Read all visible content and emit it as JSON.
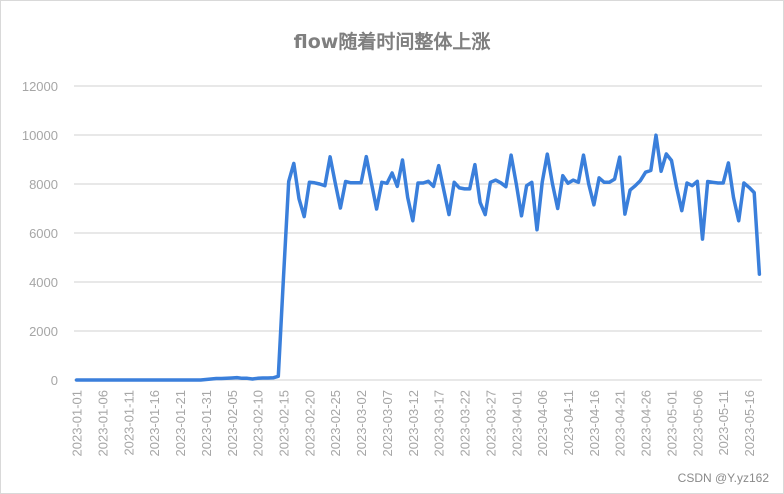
{
  "chart_data": {
    "type": "line",
    "title": "flow随着时间整体上涨",
    "xlabel": "",
    "ylabel": "",
    "ylim": [
      0,
      12000
    ],
    "yticks": [
      0,
      2000,
      4000,
      6000,
      8000,
      10000,
      12000
    ],
    "grid": true,
    "legend": "none",
    "colors": {
      "line": "#3a7fdb",
      "grid": "#d9d9d9",
      "text": "#a6a6a6"
    },
    "x_tick_every": 5,
    "categories": [
      "2023-01-01",
      "2023-01-02",
      "2023-01-03",
      "2023-01-04",
      "2023-01-05",
      "2023-01-06",
      "2023-01-07",
      "2023-01-08",
      "2023-01-09",
      "2023-01-10",
      "2023-01-11",
      "2023-01-12",
      "2023-01-13",
      "2023-01-14",
      "2023-01-15",
      "2023-01-16",
      "2023-01-17",
      "2023-01-18",
      "2023-01-19",
      "2023-01-20",
      "2023-01-21",
      "2023-01-27",
      "2023-01-28",
      "2023-01-29",
      "2023-01-30",
      "2023-01-31",
      "2023-02-01",
      "2023-02-02",
      "2023-02-03",
      "2023-02-04",
      "2023-02-05",
      "2023-02-06",
      "2023-02-07",
      "2023-02-08",
      "2023-02-09",
      "2023-02-10",
      "2023-02-11",
      "2023-02-12",
      "2023-02-13",
      "2023-02-14",
      "2023-02-15",
      "2023-02-16",
      "2023-02-17",
      "2023-02-18",
      "2023-02-19",
      "2023-02-20",
      "2023-02-21",
      "2023-02-22",
      "2023-02-23",
      "2023-02-24",
      "2023-02-25",
      "2023-02-26",
      "2023-02-27",
      "2023-02-28",
      "2023-03-01",
      "2023-03-02",
      "2023-03-03",
      "2023-03-04",
      "2023-03-05",
      "2023-03-06",
      "2023-03-07",
      "2023-03-08",
      "2023-03-09",
      "2023-03-10",
      "2023-03-11",
      "2023-03-12",
      "2023-03-13",
      "2023-03-14",
      "2023-03-15",
      "2023-03-16",
      "2023-03-17",
      "2023-03-18",
      "2023-03-19",
      "2023-03-20",
      "2023-03-21",
      "2023-03-22",
      "2023-03-23",
      "2023-03-24",
      "2023-03-25",
      "2023-03-26",
      "2023-03-27",
      "2023-03-28",
      "2023-03-29",
      "2023-03-30",
      "2023-03-31",
      "2023-04-01",
      "2023-04-02",
      "2023-04-03",
      "2023-04-04",
      "2023-04-05",
      "2023-04-06",
      "2023-04-07",
      "2023-04-08",
      "2023-04-09",
      "2023-04-10",
      "2023-04-11",
      "2023-04-12",
      "2023-04-13",
      "2023-04-14",
      "2023-04-15",
      "2023-04-16",
      "2023-04-17",
      "2023-04-18",
      "2023-04-19",
      "2023-04-20",
      "2023-04-21",
      "2023-04-22",
      "2023-04-23",
      "2023-04-24",
      "2023-04-25",
      "2023-04-26",
      "2023-04-27",
      "2023-04-28",
      "2023-04-29",
      "2023-04-30",
      "2023-05-01",
      "2023-05-02",
      "2023-05-03",
      "2023-05-04",
      "2023-05-05",
      "2023-05-06",
      "2023-05-07",
      "2023-05-08",
      "2023-05-09",
      "2023-05-10",
      "2023-05-11",
      "2023-05-12",
      "2023-05-13",
      "2023-05-14",
      "2023-05-15",
      "2023-05-16",
      "2023-05-17",
      "2023-05-18"
    ],
    "values": [
      0,
      0,
      0,
      0,
      0,
      0,
      0,
      0,
      0,
      0,
      0,
      0,
      0,
      0,
      0,
      0,
      0,
      0,
      0,
      0,
      0,
      0,
      0,
      0,
      0,
      20,
      40,
      60,
      60,
      70,
      80,
      100,
      70,
      70,
      40,
      70,
      80,
      80,
      90,
      150,
      4200,
      8100,
      8840,
      7400,
      6670,
      8070,
      8050,
      8000,
      7930,
      9110,
      8050,
      7020,
      8100,
      8050,
      8050,
      8050,
      9120,
      8050,
      6980,
      8070,
      8030,
      8450,
      7900,
      8980,
      7450,
      6500,
      8040,
      8040,
      8110,
      7900,
      8750,
      7730,
      6750,
      8070,
      7840,
      7800,
      7800,
      8790,
      7250,
      6750,
      8070,
      8160,
      8050,
      7890,
      9180,
      8000,
      6700,
      7930,
      8070,
      6130,
      8070,
      9220,
      8000,
      7000,
      8340,
      8030,
      8160,
      8070,
      9180,
      8000,
      7150,
      8250,
      8070,
      8070,
      8200,
      9100,
      6770,
      7750,
      7930,
      8140,
      8480,
      8550,
      9990,
      8520,
      9230,
      8960,
      7860,
      6910,
      8040,
      7930,
      8110,
      5750,
      8100,
      8070,
      8040,
      8040,
      8860,
      7450,
      6500,
      8040,
      7860,
      7650,
      4320
    ]
  },
  "watermark": "CSDN @Y.yz162"
}
